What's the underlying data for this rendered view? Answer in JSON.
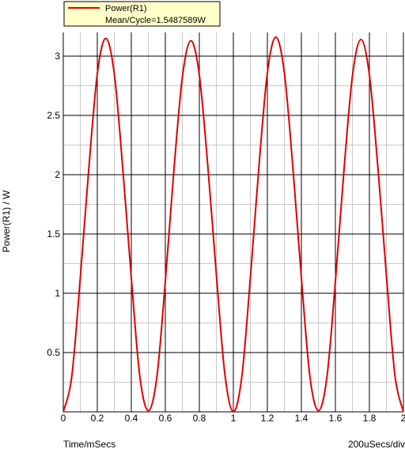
{
  "chart_data": {
    "type": "line",
    "title": "",
    "xlabel": "Time/mSecs",
    "ylabel": "Power(R1) / W",
    "x_scale_note": "200uSecs/div",
    "xlim": [
      0,
      2
    ],
    "ylim": [
      0,
      3.2
    ],
    "x_ticks": [
      "0",
      "0.2",
      "0.4",
      "0.6",
      "0.8",
      "1",
      "1.2",
      "1.4",
      "1.6",
      "1.8",
      "2"
    ],
    "x_tick_values": [
      0,
      0.2,
      0.4,
      0.6,
      0.8,
      1.0,
      1.2,
      1.4,
      1.6,
      1.8,
      2.0
    ],
    "y_ticks": [
      "0.5",
      "1",
      "1.5",
      "2",
      "2.5",
      "3"
    ],
    "y_tick_values": [
      0.5,
      1.0,
      1.5,
      2.0,
      2.5,
      3.0
    ],
    "grid": true,
    "legend_position": "top-left",
    "series": [
      {
        "name": "Power(R1)",
        "annotation": "Mean/Cycle=1.5487589W",
        "color": "#e00000",
        "x": [
          0,
          0.05,
          0.1,
          0.15,
          0.2,
          0.25,
          0.3,
          0.35,
          0.4,
          0.45,
          0.5,
          0.55,
          0.6,
          0.65,
          0.7,
          0.75,
          0.8,
          0.85,
          0.9,
          0.95,
          1.0,
          1.05,
          1.1,
          1.15,
          1.2,
          1.25,
          1.3,
          1.35,
          1.4,
          1.45,
          1.5,
          1.55,
          1.6,
          1.65,
          1.7,
          1.75,
          1.8,
          1.85,
          1.9,
          1.95,
          2.0
        ],
        "y": [
          0,
          0.3,
          1.13,
          2.05,
          2.85,
          3.15,
          2.85,
          2.05,
          1.13,
          0.3,
          0.01,
          0.29,
          1.1,
          2.03,
          2.82,
          3.13,
          2.84,
          2.07,
          1.16,
          0.32,
          0,
          0.3,
          1.13,
          2.06,
          2.86,
          3.16,
          2.86,
          2.06,
          1.13,
          0.3,
          0.01,
          0.29,
          1.1,
          2.03,
          2.83,
          3.14,
          2.84,
          2.06,
          1.15,
          0.31,
          0
        ]
      }
    ]
  },
  "colors": {
    "grid_major": "#000000",
    "grid_minor": "#c8c8c8",
    "legend_bg": "#ffffc8"
  }
}
